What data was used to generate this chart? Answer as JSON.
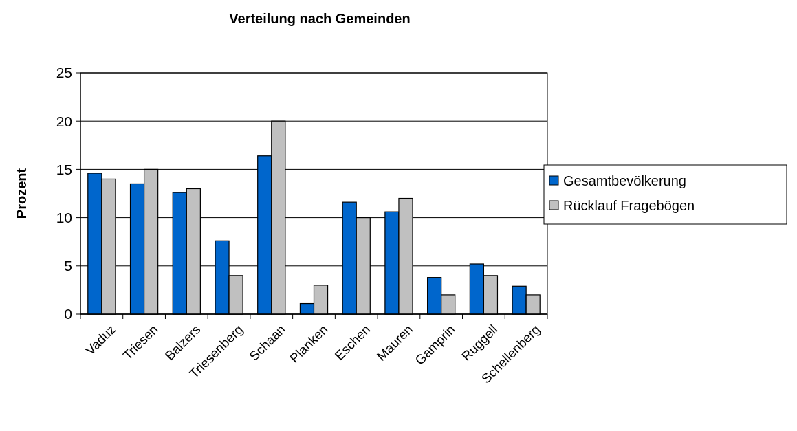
{
  "chart_data": {
    "type": "bar",
    "title": "Verteilung nach Gemeinden",
    "ylabel": "Prozent",
    "categories": [
      "Vaduz",
      "Triesen",
      "Balzers",
      "Triesenberg",
      "Schaan",
      "Planken",
      "Eschen",
      "Mauren",
      "Gamprin",
      "Ruggell",
      "Schellenberg"
    ],
    "series": [
      {
        "name": "Gesamtbevölkerung",
        "color": "#0066cc",
        "values": [
          14.6,
          13.5,
          12.6,
          7.6,
          16.4,
          1.1,
          11.6,
          10.6,
          3.8,
          5.2,
          2.9
        ]
      },
      {
        "name": "Rücklauf Fragebögen",
        "color": "#c0c0c0",
        "values": [
          14,
          15,
          13,
          4,
          20,
          3,
          10,
          12,
          2,
          4,
          2
        ]
      }
    ],
    "ylim": [
      0,
      25
    ],
    "yticks": [
      0,
      5,
      10,
      15,
      20,
      25
    ],
    "grid": "y",
    "legend": "right"
  }
}
